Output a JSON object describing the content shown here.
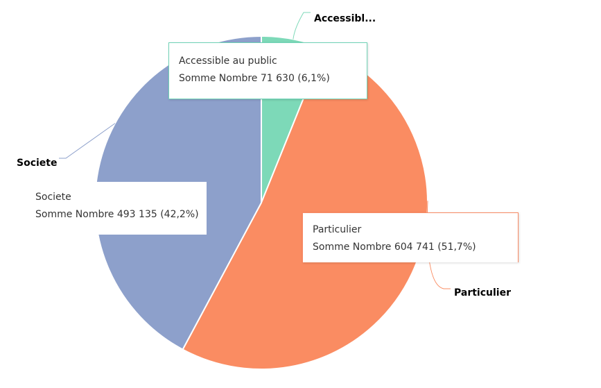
{
  "chart_data": {
    "type": "pie",
    "slices": [
      {
        "label": "Accessible au public",
        "short_label": "Accessibl...",
        "value": 71630,
        "percent": 6.1,
        "color": "#7dd9b8"
      },
      {
        "label": "Particulier",
        "short_label": "Particulier",
        "value": 604741,
        "percent": 51.7,
        "color": "#fa8c62"
      },
      {
        "label": "Societe",
        "short_label": "Societe",
        "value": 493135,
        "percent": 42.2,
        "color": "#8da0cb"
      }
    ],
    "legend": "none"
  },
  "tooltips": {
    "accessible": {
      "title": "Accessible au public",
      "line": "Somme Nombre 71 630 (6,1%)"
    },
    "societe": {
      "title": "Societe",
      "line": "Somme Nombre 493 135 (42,2%)"
    },
    "particulier": {
      "title": "Particulier",
      "line": "Somme Nombre 604 741 (51,7%)"
    }
  }
}
